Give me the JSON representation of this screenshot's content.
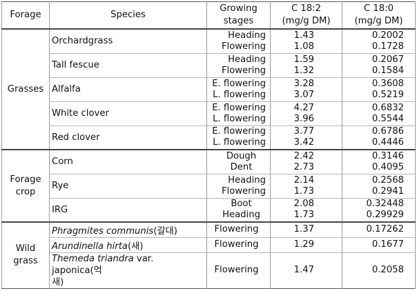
{
  "headers": {
    "forage": "Forage",
    "species": "Species",
    "stages_line1": "Growing",
    "stages_line2": "stages",
    "c182_line1": "C  18:2",
    "c182_line2": "(mg/g  DM)",
    "c180_line1": "C  18:0",
    "c180_line2": "(mg/g  DM)"
  },
  "groups": [
    {
      "forage": "Grasses",
      "rows": [
        {
          "species": "Orchardgrass",
          "stages": [
            "Heading",
            "Flowering"
          ],
          "c18_2": [
            "1.43",
            "1.08"
          ],
          "c18_0": [
            "0.2002",
            "0.1728"
          ]
        },
        {
          "species": "Tall fescue",
          "stages": [
            "Heading",
            "Flowering"
          ],
          "c18_2": [
            "1.59",
            "1.32"
          ],
          "c18_0": [
            "0.2067",
            "0.1584"
          ]
        },
        {
          "species": "Alfalfa",
          "stages": [
            "E. flowering",
            "L. flowering"
          ],
          "c18_2": [
            "3.28",
            "3.07"
          ],
          "c18_0": [
            "0.3608",
            "0.5219"
          ]
        },
        {
          "species": "White clover",
          "stages": [
            "E. flowering",
            "L. flowering"
          ],
          "c18_2": [
            "4.27",
            "3.96"
          ],
          "c18_0": [
            "0.6832",
            "0.5544"
          ]
        },
        {
          "species": "Red clover",
          "stages": [
            "E. flowering",
            "L. flowering"
          ],
          "c18_2": [
            "3.77",
            "3.42"
          ],
          "c18_0": [
            "0.6786",
            "0.4446"
          ]
        }
      ]
    },
    {
      "forage_line1": "Forage",
      "forage_line2": "crop",
      "rows": [
        {
          "species": "Corn",
          "stages": [
            "Dough",
            "Dent"
          ],
          "c18_2": [
            "2.42",
            "2.73"
          ],
          "c18_0": [
            "0.3146",
            "0.4095"
          ]
        },
        {
          "species": "Rye",
          "stages": [
            "Heading",
            "Flowering"
          ],
          "c18_2": [
            "2.14",
            "1.73"
          ],
          "c18_0": [
            "0.2568",
            "0.2941"
          ]
        },
        {
          "species": "IRG",
          "stages": [
            "Boot",
            "Heading"
          ],
          "c18_2": [
            "2.08",
            "1.73"
          ],
          "c18_0": [
            "0.32448",
            "0.29929"
          ]
        }
      ]
    },
    {
      "forage_line1": "Wild",
      "forage_line2": "grass",
      "rows": [
        {
          "species_italic": "Phragmites communis",
          "species_suffix": "(갈대)",
          "stage": "Flowering",
          "c18_2": "1.37",
          "c18_0": "0.17262"
        },
        {
          "species_italic": "Arundinella hirta",
          "species_suffix": "(새)",
          "stage": "Flowering",
          "c18_2": "1.29",
          "c18_0": "0.1677"
        },
        {
          "species_italic": "Themeda triandra",
          "species_mid": " var. japonica(억",
          "species_line2": "새)",
          "stage": "Flowering",
          "c18_2": "1.47",
          "c18_0": "0.2058"
        }
      ]
    }
  ]
}
